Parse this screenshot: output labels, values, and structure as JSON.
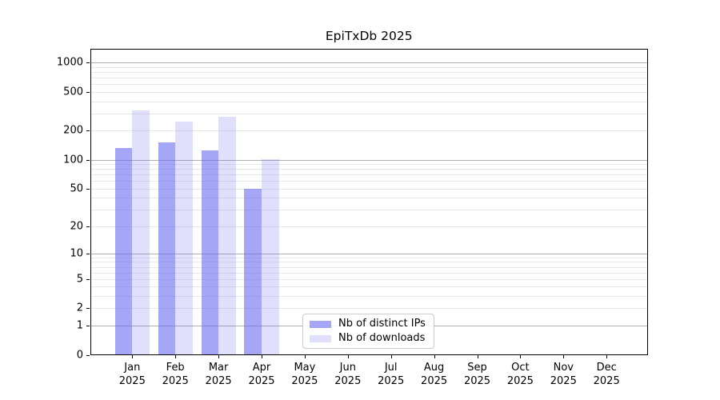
{
  "title": "EpiTxDb 2025",
  "legend": {
    "items": [
      {
        "label": "Nb of distinct IPs",
        "color": "rgba(102,102,240,0.58)"
      },
      {
        "label": "Nb of downloads",
        "color": "rgba(102,102,240,0.20)"
      }
    ]
  },
  "chart_data": {
    "type": "bar",
    "title": "EpiTxDb 2025",
    "categories": [
      "Jan",
      "Feb",
      "Mar",
      "Apr",
      "May",
      "Jun",
      "Jul",
      "Aug",
      "Sep",
      "Oct",
      "Nov",
      "Dec"
    ],
    "year": "2025",
    "series": [
      {
        "name": "Nb of distinct IPs",
        "color": "rgba(102,102,240,0.58)",
        "values": [
          132,
          150,
          125,
          50,
          0,
          0,
          0,
          0,
          0,
          0,
          0,
          0
        ]
      },
      {
        "name": "Nb of downloads",
        "color": "rgba(102,102,240,0.20)",
        "values": [
          326,
          250,
          277,
          102,
          0,
          0,
          0,
          0,
          0,
          0,
          0,
          0
        ]
      }
    ],
    "xlabel": "",
    "ylabel": "",
    "y_scale": "log10(1+v)",
    "y_ticks": [
      0,
      1,
      2,
      5,
      10,
      20,
      50,
      100,
      200,
      500,
      1000
    ],
    "ylim": [
      0,
      1390
    ],
    "legend_position": "lower center",
    "grid": {
      "major_values": [
        1,
        10,
        100,
        1000
      ],
      "minor_values": [
        2,
        3,
        4,
        5,
        6,
        7,
        8,
        9,
        20,
        30,
        40,
        50,
        60,
        70,
        80,
        90,
        200,
        300,
        400,
        500,
        600,
        700,
        800,
        900
      ],
      "major_color": "#b0b0b0",
      "minor_color": "#e8e8e8"
    }
  }
}
